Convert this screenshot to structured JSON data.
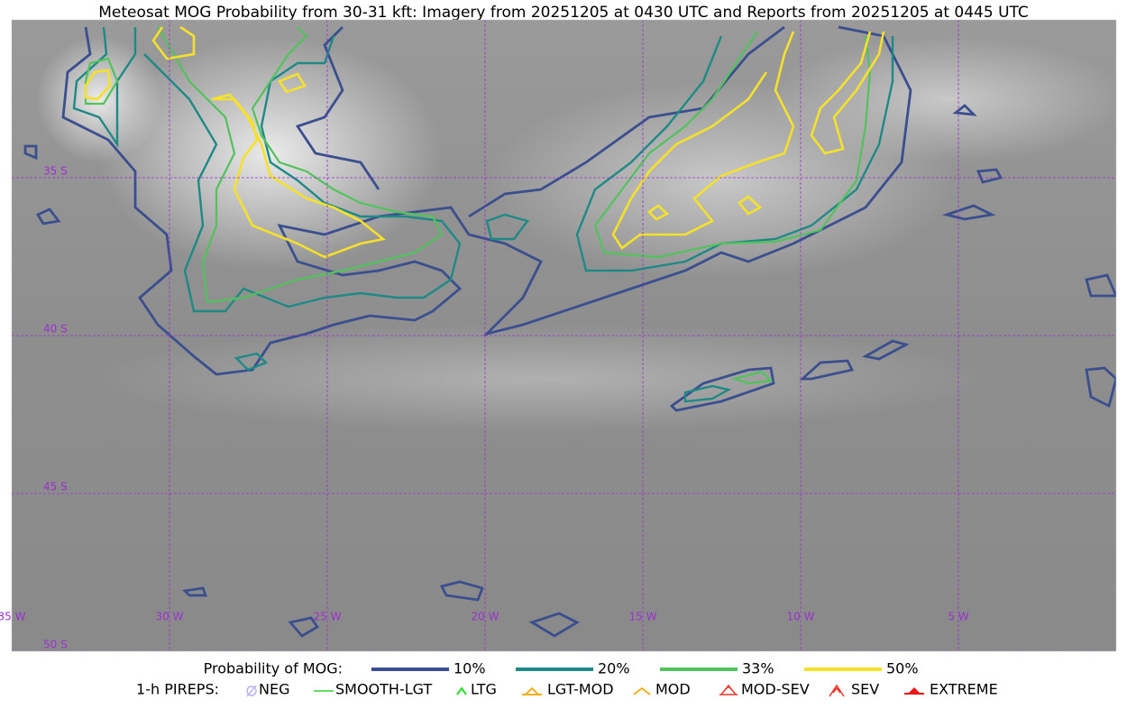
{
  "title": "Meteosat MOG Probability from 30-31 kft: Imagery from 20251205 at 0430 UTC and Reports from 20251205 at 0445 UTC",
  "map": {
    "lon_labels": [
      "35 W",
      "30 W",
      "25 W",
      "20 W",
      "15 W",
      "10 W",
      "5 W"
    ],
    "lat_labels": [
      "35 S",
      "40 S",
      "45 S",
      "50 S"
    ]
  },
  "legend": {
    "probability": {
      "title": "Probability of MOG:",
      "items": [
        {
          "label": "10%",
          "color": "#3b4f8e"
        },
        {
          "label": "20%",
          "color": "#1f8a85"
        },
        {
          "label": "33%",
          "color": "#52c25c"
        },
        {
          "label": "50%",
          "color": "#f5e12c"
        }
      ]
    },
    "pireps": {
      "title": "1-h PIREPS:",
      "items": [
        {
          "label": "NEG",
          "color": "#b9b3f0"
        },
        {
          "label": "SMOOTH-LGT",
          "color": "#35d435"
        },
        {
          "label": "LTG",
          "color": "#22e022"
        },
        {
          "label": "LGT-MOD",
          "color": "#f2b01e"
        },
        {
          "label": "MOD",
          "color": "#f2b01e"
        },
        {
          "label": "MOD-SEV",
          "color": "#e8372a"
        },
        {
          "label": "SEV",
          "color": "#e8372a"
        },
        {
          "label": "EXTREME",
          "color": "#e81818"
        }
      ]
    }
  }
}
